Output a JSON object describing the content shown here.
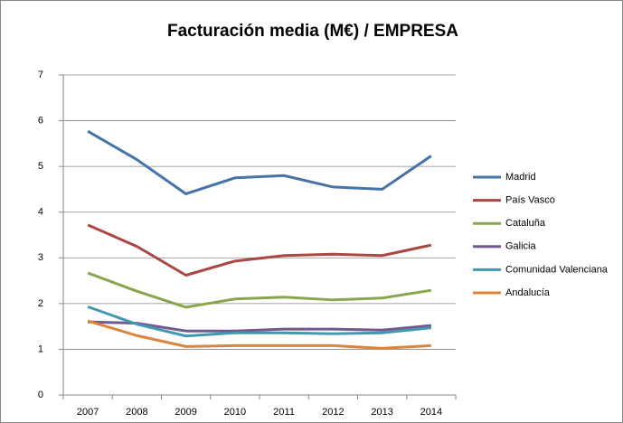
{
  "chart_data": {
    "type": "line",
    "title": "Facturación media (M€) / EMPRESA",
    "categories": [
      "2007",
      "2008",
      "2009",
      "2010",
      "2011",
      "2012",
      "2013",
      "2014"
    ],
    "series": [
      {
        "name": "Madrid",
        "color": "#4572a7",
        "values": [
          5.77,
          5.15,
          4.4,
          4.75,
          4.8,
          4.55,
          4.5,
          5.23
        ]
      },
      {
        "name": "País Vasco",
        "color": "#aa4643",
        "values": [
          3.72,
          3.25,
          2.62,
          2.93,
          3.05,
          3.08,
          3.05,
          3.28
        ]
      },
      {
        "name": "Cataluña",
        "color": "#89a54e",
        "values": [
          2.67,
          2.27,
          1.92,
          2.1,
          2.14,
          2.08,
          2.12,
          2.29
        ]
      },
      {
        "name": "Galicia",
        "color": "#71588f",
        "values": [
          1.6,
          1.57,
          1.4,
          1.4,
          1.44,
          1.44,
          1.42,
          1.52
        ]
      },
      {
        "name": "Comunidad Valenciana",
        "color": "#4198af",
        "values": [
          1.93,
          1.55,
          1.29,
          1.36,
          1.36,
          1.34,
          1.36,
          1.47
        ]
      },
      {
        "name": "Andalucía",
        "color": "#db843d",
        "values": [
          1.62,
          1.3,
          1.06,
          1.08,
          1.08,
          1.08,
          1.02,
          1.08
        ]
      }
    ],
    "ylim": [
      0,
      7
    ],
    "yticks": [
      0,
      1,
      2,
      3,
      4,
      5,
      6,
      7
    ],
    "grid": true,
    "legend": "right"
  }
}
